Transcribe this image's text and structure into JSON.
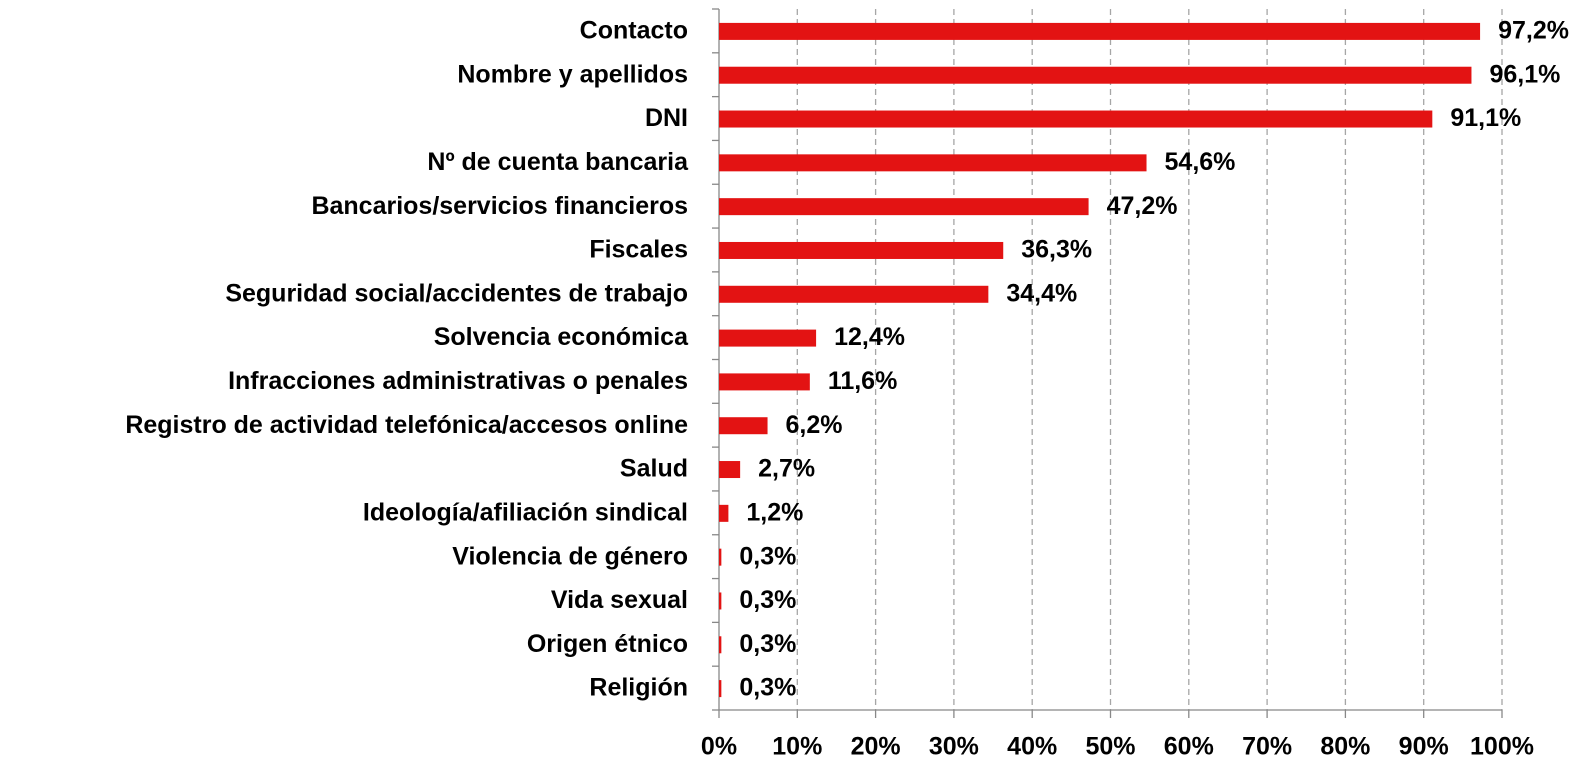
{
  "chart_data": {
    "type": "hbar",
    "categories": [
      "Contacto",
      "Nombre y apellidos",
      "DNI",
      "Nº de cuenta bancaria",
      "Bancarios/servicios financieros",
      "Fiscales",
      "Seguridad social/accidentes de trabajo",
      "Solvencia económica",
      "Infracciones administrativas o penales",
      "Registro de actividad telefónica/accesos online",
      "Salud",
      "Ideología/afiliación sindical",
      "Violencia de género",
      "Vida sexual",
      "Origen étnico",
      "Religión"
    ],
    "values": [
      97.2,
      96.1,
      91.1,
      54.6,
      47.2,
      36.3,
      34.4,
      12.4,
      11.6,
      6.2,
      2.7,
      1.2,
      0.3,
      0.3,
      0.3,
      0.3
    ],
    "value_labels": [
      "97,2%",
      "96,1%",
      "91,1%",
      "54,6%",
      "47,2%",
      "36,3%",
      "34,4%",
      "12,4%",
      "11,6%",
      "6,2%",
      "2,7%",
      "1,2%",
      "0,3%",
      "0,3%",
      "0,3%",
      "0,3%"
    ],
    "color": "#e31313",
    "xlim": [
      0,
      100
    ],
    "xticks": [
      {
        "value": 0,
        "label": "0%"
      },
      {
        "value": 10,
        "label": "10%"
      },
      {
        "value": 20,
        "label": "20%"
      },
      {
        "value": 30,
        "label": "30%"
      },
      {
        "value": 40,
        "label": "40%"
      },
      {
        "value": 50,
        "label": "50%"
      },
      {
        "value": 60,
        "label": "60%"
      },
      {
        "value": 70,
        "label": "70%"
      },
      {
        "value": 80,
        "label": "80%"
      },
      {
        "value": 90,
        "label": "90%"
      },
      {
        "value": 100,
        "label": "100%"
      }
    ],
    "grid": true
  }
}
